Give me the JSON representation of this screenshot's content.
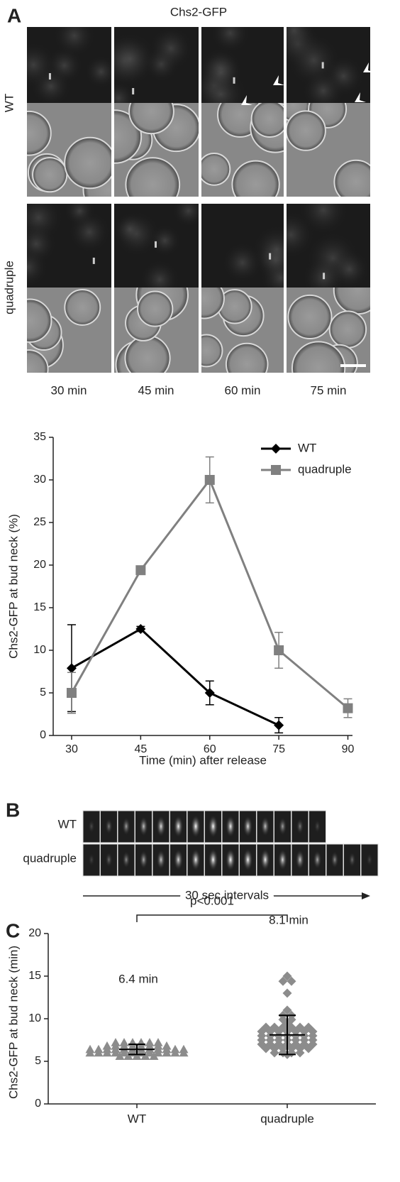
{
  "panel_a": {
    "label": "A",
    "title": "Chs2-GFP",
    "rows": [
      "WT",
      "quadruple"
    ],
    "columns": [
      "30 min",
      "45 min",
      "60 min",
      "75 min"
    ]
  },
  "panel_b": {
    "label": "B",
    "rows": [
      "WT",
      "quadruple"
    ],
    "caption": "30 sec intervals"
  },
  "panel_c": {
    "label": "C"
  },
  "chart_data": [
    {
      "type": "line",
      "x_label": "Time (min) after release",
      "y_label": "Chs2-GFP at bud neck (%)",
      "x": [
        30,
        45,
        60,
        75,
        90
      ],
      "xlim": [
        26,
        91
      ],
      "xticks": [
        30,
        45,
        60,
        75,
        90
      ],
      "ylim": [
        0,
        35
      ],
      "yticks": [
        0,
        5,
        10,
        15,
        20,
        25,
        30,
        35
      ],
      "legend": "upper right",
      "series": [
        {
          "name": "WT",
          "color": "#000000",
          "marker": "diamond",
          "values": [
            7.9,
            12.5,
            5.0,
            1.2,
            null
          ],
          "errors": [
            5.1,
            0.3,
            1.4,
            0.9,
            null
          ]
        },
        {
          "name": "quadruple",
          "color": "#808080",
          "marker": "square",
          "values": [
            5.0,
            19.4,
            30.0,
            10.0,
            3.2
          ],
          "errors": [
            2.4,
            0.3,
            2.7,
            2.1,
            1.1
          ]
        }
      ]
    },
    {
      "type": "strip",
      "y_label": "Chs2-GFP at bud neck (min)",
      "annotation": "p<0.001",
      "ylim": [
        0,
        20
      ],
      "yticks": [
        0,
        5,
        10,
        15,
        20
      ],
      "color": "#8c8c8c",
      "groups": [
        {
          "name": "WT",
          "marker": "triangle",
          "mean": 6.4,
          "sd": 0.6,
          "mean_label": "6.4 min",
          "values": [
            5.6,
            5.6,
            5.6,
            5.6,
            5.6,
            6.0,
            6.0,
            6.0,
            6.0,
            6.0,
            6.0,
            6.0,
            6.0,
            6.0,
            6.0,
            6.0,
            6.0,
            6.4,
            6.4,
            6.4,
            6.4,
            6.4,
            6.4,
            6.4,
            6.4,
            6.4,
            6.4,
            6.4,
            6.4,
            6.8,
            6.8,
            6.8,
            6.8,
            6.8,
            6.8,
            6.8,
            6.8,
            7.2,
            7.2,
            7.2,
            7.2,
            7.2,
            7.2
          ]
        },
        {
          "name": "quadruple",
          "marker": "diamond",
          "mean": 8.1,
          "sd": 2.3,
          "mean_label": "8.1 min",
          "values": [
            15.0,
            14.4,
            14.4,
            13.0,
            11.0,
            10.4,
            10.4,
            9.9,
            9.9,
            9.5,
            9.0,
            9.0,
            9.0,
            9.0,
            9.0,
            9.0,
            8.5,
            8.5,
            8.5,
            8.5,
            8.5,
            8.5,
            8.5,
            8.0,
            8.0,
            8.0,
            8.0,
            8.0,
            8.0,
            8.0,
            7.5,
            7.5,
            7.5,
            7.5,
            7.5,
            7.5,
            7.5,
            7.0,
            7.0,
            7.0,
            7.0,
            7.0,
            7.0,
            7.0,
            6.5,
            6.5,
            6.5,
            6.5,
            6.5,
            6.5,
            6.0,
            6.0,
            6.0,
            6.0,
            5.8
          ]
        }
      ]
    }
  ]
}
